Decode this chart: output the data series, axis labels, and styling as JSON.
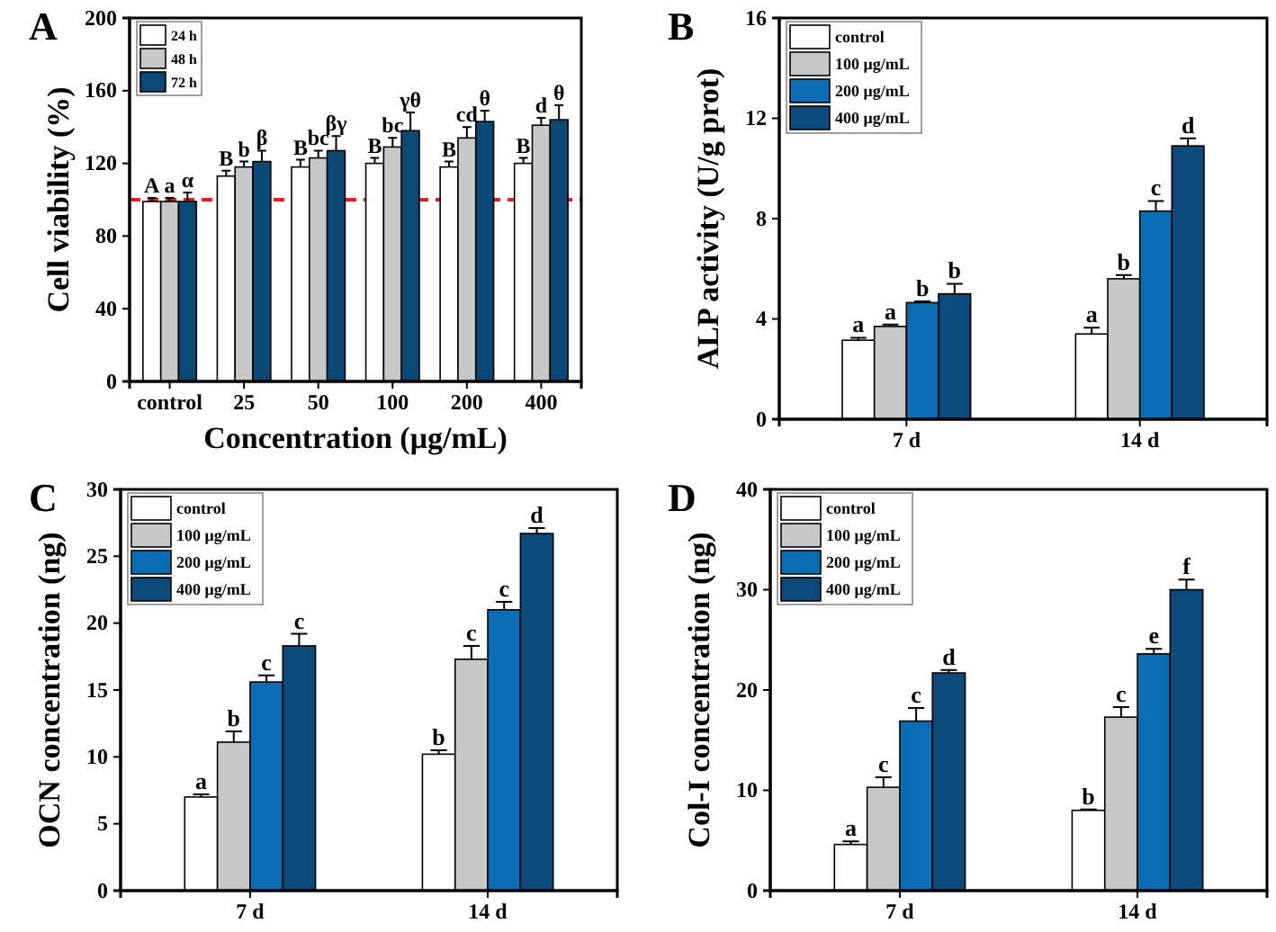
{
  "chart_data": [
    {
      "type": "bar",
      "title": "A",
      "xlabel": "Concentration (μg/mL)",
      "ylabel": "Cell viability (%)",
      "categories": [
        "control",
        "25",
        "50",
        "100",
        "200",
        "400"
      ],
      "ylim": [
        0,
        200
      ],
      "yticks": [
        0,
        40,
        80,
        120,
        160,
        200
      ],
      "legend": "top left",
      "series": [
        {
          "name": "24 h",
          "color": "#ffffff",
          "values": [
            99,
            113,
            118,
            120,
            118,
            120
          ],
          "errors": [
            2,
            3,
            4,
            3,
            3,
            3
          ]
        },
        {
          "name": "48 h",
          "color": "#c8c8c8",
          "values": [
            99,
            118,
            123,
            129,
            134,
            141
          ],
          "errors": [
            2,
            3,
            4,
            5,
            6,
            4
          ]
        },
        {
          "name": "72 h",
          "color": "#0c4876",
          "values": [
            99,
            121,
            127,
            138,
            143,
            144
          ],
          "errors": [
            5,
            6,
            8,
            10,
            6,
            8
          ]
        }
      ],
      "ref_lines": [
        {
          "axis": "y",
          "value": 100,
          "color": "#e02020",
          "line_style": "dashed"
        }
      ],
      "annotations": [
        {
          "text": "A",
          "x": "control",
          "y": 99
        },
        {
          "text": "a",
          "x": "control",
          "y": 99
        },
        {
          "text": "α",
          "x": "control",
          "y": 99
        },
        {
          "text": "B",
          "x": "25",
          "y": 113
        },
        {
          "text": "b",
          "x": "25",
          "y": 118
        },
        {
          "text": "β",
          "x": "25",
          "y": 121
        },
        {
          "text": "B",
          "x": "50",
          "y": 118
        },
        {
          "text": "bc",
          "x": "50",
          "y": 123
        },
        {
          "text": "βγ",
          "x": "50",
          "y": 127
        },
        {
          "text": "B",
          "x": "100",
          "y": 120
        },
        {
          "text": "bc",
          "x": "100",
          "y": 129
        },
        {
          "text": "γθ",
          "x": "100",
          "y": 138
        },
        {
          "text": "B",
          "x": "200",
          "y": 118
        },
        {
          "text": "cd",
          "x": "200",
          "y": 134
        },
        {
          "text": "θ",
          "x": "200",
          "y": 143
        },
        {
          "text": "B",
          "x": "400",
          "y": 120
        },
        {
          "text": "d",
          "x": "400",
          "y": 141
        },
        {
          "text": "θ",
          "x": "400",
          "y": 144
        }
      ]
    },
    {
      "type": "bar",
      "title": "B",
      "ylabel": "ALP activity (U/g prot)",
      "categories": [
        "7 d",
        "14 d"
      ],
      "ylim": [
        0,
        16
      ],
      "yticks": [
        0,
        4,
        8,
        12,
        16
      ],
      "legend": "top left",
      "series": [
        {
          "name": "control",
          "color": "#ffffff",
          "values": [
            3.15,
            3.4
          ],
          "errors": [
            0.1,
            0.25
          ]
        },
        {
          "name": "100 μg/mL",
          "color": "#c8c8c8",
          "values": [
            3.7,
            5.6
          ],
          "errors": [
            0.08,
            0.15
          ]
        },
        {
          "name": "200 μg/mL",
          "color": "#0a6db3",
          "values": [
            4.65,
            8.3
          ],
          "errors": [
            0.05,
            0.4
          ]
        },
        {
          "name": "400 μg/mL",
          "color": "#0b4a7a",
          "values": [
            5.0,
            10.9
          ],
          "errors": [
            0.4,
            0.3
          ]
        }
      ],
      "annotations": [
        {
          "text": "a",
          "x": "7 d",
          "y": 3.15
        },
        {
          "text": "a",
          "x": "7 d",
          "y": 3.7
        },
        {
          "text": "b",
          "x": "7 d",
          "y": 4.65
        },
        "b",
        {
          "text": "a",
          "x": "14 d",
          "y": 3.4
        },
        {
          "text": "b",
          "x": "14 d",
          "y": 5.6
        },
        {
          "text": "c",
          "x": "14 d",
          "y": 8.3
        },
        "d"
      ]
    },
    {
      "type": "bar",
      "title": "C",
      "ylabel": "OCN concentration (ng)",
      "categories": [
        "7 d",
        "14 d"
      ],
      "ylim": [
        0,
        30
      ],
      "yticks": [
        0,
        5,
        10,
        15,
        20,
        25,
        30
      ],
      "legend": "top left",
      "series": [
        {
          "name": "control",
          "color": "#ffffff",
          "values": [
            7.0,
            10.2
          ],
          "errors": [
            0.2,
            0.3
          ]
        },
        {
          "name": "100 μg/mL",
          "color": "#c8c8c8",
          "values": [
            11.1,
            17.3
          ],
          "errors": [
            0.8,
            1.0
          ]
        },
        {
          "name": "200 μg/mL",
          "color": "#0a6db3",
          "values": [
            15.6,
            21.0
          ],
          "errors": [
            0.5,
            0.6
          ]
        },
        {
          "name": "400 μg/mL",
          "color": "#0b4a7a",
          "values": [
            18.3,
            26.7
          ],
          "errors": [
            0.9,
            0.4
          ]
        }
      ],
      "annotations": [
        {
          "text": "a",
          "x": "7 d",
          "y": 7.0
        },
        {
          "text": "b",
          "x": "7 d",
          "y": 11.1
        },
        {
          "text": "c",
          "x": "7 d",
          "y": 15.6
        },
        "c",
        {
          "text": "b",
          "x": "14 d",
          "y": 10.2
        },
        {
          "text": "c",
          "x": "14 d",
          "y": 17.3
        },
        {
          "text": "c",
          "x": "14 d",
          "y": 21.0
        },
        "d"
      ]
    },
    {
      "type": "bar",
      "title": "D",
      "ylabel": "Col-I concentration (ng)",
      "categories": [
        "7 d",
        "14 d"
      ],
      "ylim": [
        0,
        40
      ],
      "yticks": [
        0,
        10,
        20,
        30,
        40
      ],
      "legend": "top left",
      "series": [
        {
          "name": "control",
          "color": "#ffffff",
          "values": [
            4.6,
            8.0
          ],
          "errors": [
            0.3,
            0.1
          ]
        },
        {
          "name": "100 μg/mL",
          "color": "#c8c8c8",
          "values": [
            10.3,
            17.3
          ],
          "errors": [
            1.0,
            1.0
          ]
        },
        {
          "name": "200 μg/mL",
          "color": "#0a6db3",
          "values": [
            16.9,
            23.6
          ],
          "errors": [
            1.3,
            0.5
          ]
        },
        {
          "name": "400 μg/mL",
          "color": "#0b4a7a",
          "values": [
            21.7,
            30.0
          ],
          "errors": [
            0.3,
            1.0
          ]
        }
      ],
      "annotations": [
        {
          "text": "a",
          "x": "7 d",
          "y": 4.6
        },
        {
          "text": "c",
          "x": "7 d",
          "y": 10.3
        },
        {
          "text": "c",
          "x": "7 d",
          "y": 16.9
        },
        "d",
        {
          "text": "b",
          "x": "14 d",
          "y": 8.0
        },
        {
          "text": "c",
          "x": "14 d",
          "y": 17.3
        },
        {
          "text": "e",
          "x": "14 d",
          "y": 23.6
        },
        "f"
      ]
    }
  ]
}
